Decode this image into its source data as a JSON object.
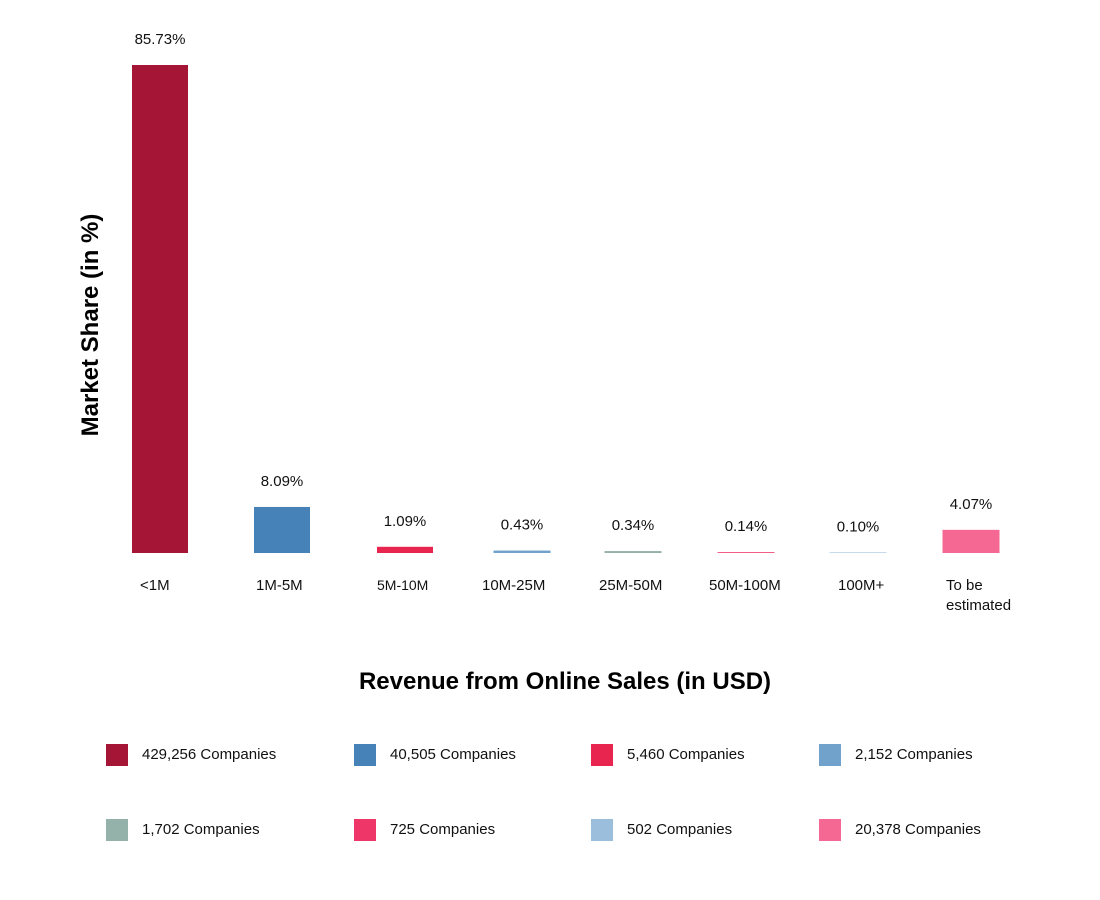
{
  "chart_data": {
    "type": "bar",
    "ylabel": "Market Share (in %)",
    "xlabel": "Revenue from Online Sales (in USD)",
    "ylim": [
      0,
      85.73
    ],
    "grid": false,
    "legend_position": "bottom",
    "categories": [
      "<1M",
      "1M-5M",
      "5M-10M",
      "10M-25M",
      "25M-50M",
      "50M-100M",
      "100M+",
      "To be estimated"
    ],
    "category_lines": [
      [
        "<1M"
      ],
      [
        "1M-5M"
      ],
      [
        "5M-10M"
      ],
      [
        "10M-25M"
      ],
      [
        "25M-50M"
      ],
      [
        "50M-100M"
      ],
      [
        "100M+"
      ],
      [
        "To be",
        "estimated"
      ]
    ],
    "values": [
      85.73,
      8.09,
      1.09,
      0.43,
      0.34,
      0.14,
      0.1,
      4.07
    ],
    "value_labels": [
      "85.73%",
      "8.09%",
      "1.09%",
      "0.43%",
      "0.34%",
      "0.14%",
      "0.10%",
      "4.07%"
    ],
    "colors": [
      "#a51535",
      "#4682b8",
      "#e8254f",
      "#70a2cc",
      "#95b2aa",
      "#ee3668",
      "#9bbedc",
      "#f46893"
    ],
    "legend": [
      {
        "label": "429,256 Companies",
        "color": "#a51535"
      },
      {
        "label": "40,505 Companies",
        "color": "#4682b8"
      },
      {
        "label": "5,460 Companies",
        "color": "#e8254f"
      },
      {
        "label": "2,152 Companies",
        "color": "#70a2cc"
      },
      {
        "label": "1,702 Companies",
        "color": "#95b2aa"
      },
      {
        "label": "725 Companies",
        "color": "#ee3668"
      },
      {
        "label": "502 Companies",
        "color": "#9bbedc"
      },
      {
        "label": "20,378 Companies",
        "color": "#f46893"
      }
    ]
  }
}
